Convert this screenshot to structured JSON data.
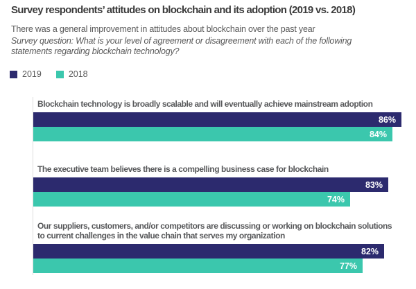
{
  "header": {
    "title": "Survey respondents’ attitudes on blockchain and its adoption (2019 vs. 2018)",
    "subtitle": "There was a general improvement in attitudes about blockchain over the past year",
    "question_lines": [
      "Survey question: What is your level of agreement or disagreement with each of the following",
      "statements regarding blockchain technology?"
    ]
  },
  "legend": {
    "items": [
      {
        "label": "2019",
        "color": "#2c2a6e"
      },
      {
        "label": "2018",
        "color": "#3bc7ad"
      }
    ]
  },
  "chart_data": {
    "type": "bar",
    "orientation": "horizontal",
    "title": "Survey respondents’ attitudes on blockchain and its adoption (2019 vs. 2018)",
    "subtitle": "There was a general improvement in attitudes about blockchain over the past year",
    "categories": [
      "Blockchain technology is broadly scalable and will eventually achieve mainstream adoption",
      "The executive team believes there is a compelling business case for blockchain",
      "Our suppliers, customers, and/or competitors are discussing or working on blockchain solutions to current challenges in the value chain that serves my organization"
    ],
    "category_lines": [
      [
        "Blockchain technology is broadly scalable and will eventually achieve mainstream adoption"
      ],
      [
        "The executive team believes there is a compelling business case for blockchain"
      ],
      [
        "Our suppliers, customers, and/or competitors are discussing or working on blockchain solutions",
        "to current challenges in the value chain that serves my organization"
      ]
    ],
    "series": [
      {
        "name": "2019",
        "color": "#2c2a6e",
        "values": [
          86,
          83,
          82
        ]
      },
      {
        "name": "2018",
        "color": "#3bc7ad",
        "values": [
          84,
          74,
          77
        ]
      }
    ],
    "value_suffix": "%",
    "value_range": [
      0,
      100
    ],
    "value_labels": "inside-end, white, bold",
    "legend_position": "top-left",
    "grid": false,
    "axis_shown": false
  },
  "colors": {
    "navy_2019": "#2c2a6e",
    "teal_2018": "#3bc7ad",
    "title_text": "#3b3b3b",
    "body_text": "#595959",
    "bar_value_text": "#ffffff",
    "axis_line": "#dcdcdc"
  }
}
